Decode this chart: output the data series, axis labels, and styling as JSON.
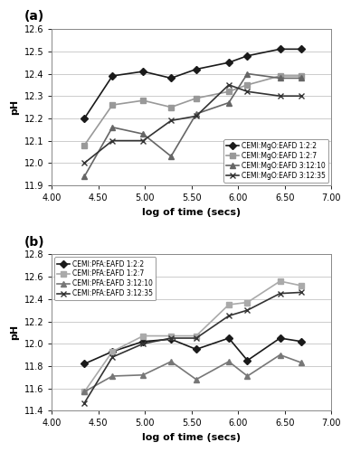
{
  "panel_a": {
    "title": "(a)",
    "xlabel": "log of time (secs)",
    "ylabel": "pH",
    "xlim": [
      4.0,
      7.0
    ],
    "ylim": [
      11.9,
      12.6
    ],
    "yticks": [
      11.9,
      12.0,
      12.1,
      12.2,
      12.3,
      12.4,
      12.5,
      12.6
    ],
    "xticks": [
      4.0,
      4.5,
      5.0,
      5.5,
      6.0,
      6.5,
      7.0
    ],
    "legend_loc": "lower right",
    "series": [
      {
        "label": "CEMI:MgO:EAFD 1:2:2",
        "color": "#1a1a1a",
        "marker": "D",
        "markersize": 4,
        "linewidth": 1.2,
        "x": [
          4.35,
          4.65,
          4.98,
          5.28,
          5.55,
          5.9,
          6.1,
          6.45,
          6.68
        ],
        "y": [
          12.2,
          12.39,
          12.41,
          12.38,
          12.42,
          12.45,
          12.48,
          12.51,
          12.51
        ]
      },
      {
        "label": "CEMI:MgO:EAFD 1:2:7",
        "color": "#999999",
        "marker": "s",
        "markersize": 4,
        "linewidth": 1.2,
        "x": [
          4.35,
          4.65,
          4.98,
          5.28,
          5.55,
          5.9,
          6.1,
          6.45,
          6.68
        ],
        "y": [
          12.08,
          12.26,
          12.28,
          12.25,
          12.29,
          12.32,
          12.35,
          12.39,
          12.39
        ]
      },
      {
        "label": "CEMI:MgO:EAFD 3:12:10",
        "color": "#666666",
        "marker": "^",
        "markersize": 4,
        "linewidth": 1.2,
        "x": [
          4.35,
          4.65,
          4.98,
          5.28,
          5.55,
          5.9,
          6.1,
          6.45,
          6.68
        ],
        "y": [
          11.94,
          12.16,
          12.13,
          12.03,
          12.22,
          12.27,
          12.4,
          12.38,
          12.38
        ]
      },
      {
        "label": "CEMI:MgO:EAFD 3:12:35",
        "color": "#333333",
        "marker": "x",
        "markersize": 5,
        "linewidth": 1.2,
        "x": [
          4.35,
          4.65,
          4.98,
          5.28,
          5.55,
          5.9,
          6.1,
          6.45,
          6.68
        ],
        "y": [
          12.0,
          12.1,
          12.1,
          12.19,
          12.21,
          12.35,
          12.32,
          12.3,
          12.3
        ]
      }
    ]
  },
  "panel_b": {
    "title": "(b)",
    "xlabel": "log of time (secs)",
    "ylabel": "pH",
    "xlim": [
      4.0,
      7.0
    ],
    "ylim": [
      11.4,
      12.8
    ],
    "yticks": [
      11.4,
      11.6,
      11.8,
      12.0,
      12.2,
      12.4,
      12.6,
      12.8
    ],
    "xticks": [
      4.0,
      4.5,
      5.0,
      5.5,
      6.0,
      6.5,
      7.0
    ],
    "legend_loc": "upper left",
    "series": [
      {
        "label": "CEMI:PFA:EAFD 1:2:2",
        "color": "#1a1a1a",
        "marker": "D",
        "markersize": 4,
        "linewidth": 1.2,
        "x": [
          4.35,
          4.65,
          4.98,
          5.28,
          5.55,
          5.9,
          6.1,
          6.45,
          6.68
        ],
        "y": [
          11.82,
          11.93,
          12.02,
          12.04,
          11.95,
          12.05,
          11.85,
          12.05,
          12.02
        ]
      },
      {
        "label": "CEMI:PFA:EAFD 1:2:7",
        "color": "#aaaaaa",
        "marker": "s",
        "markersize": 4,
        "linewidth": 1.2,
        "x": [
          4.35,
          4.65,
          4.98,
          5.28,
          5.55,
          5.9,
          6.1,
          6.45,
          6.68
        ],
        "y": [
          11.57,
          11.93,
          12.07,
          12.07,
          12.07,
          12.35,
          12.37,
          12.56,
          12.52
        ]
      },
      {
        "label": "CEMI:PFA:EAFD 3:12:10",
        "color": "#777777",
        "marker": "^",
        "markersize": 4,
        "linewidth": 1.2,
        "x": [
          4.35,
          4.65,
          4.98,
          5.28,
          5.55,
          5.9,
          6.1,
          6.45,
          6.68
        ],
        "y": [
          11.57,
          11.71,
          11.72,
          11.84,
          11.68,
          11.84,
          11.71,
          11.9,
          11.83
        ]
      },
      {
        "label": "CEMI:PFA:EAFD 3:12:35",
        "color": "#333333",
        "marker": "x",
        "markersize": 5,
        "linewidth": 1.2,
        "x": [
          4.35,
          4.65,
          4.98,
          5.28,
          5.55,
          5.9,
          6.1,
          6.45,
          6.68
        ],
        "y": [
          11.47,
          11.88,
          12.0,
          12.05,
          12.05,
          12.25,
          12.3,
          12.45,
          12.46
        ]
      }
    ]
  },
  "bg_color": "#ffffff",
  "grid_color": "#cccccc",
  "tick_fontsize": 7,
  "label_fontsize": 8,
  "legend_fontsize": 5.5,
  "title_fontsize": 10
}
